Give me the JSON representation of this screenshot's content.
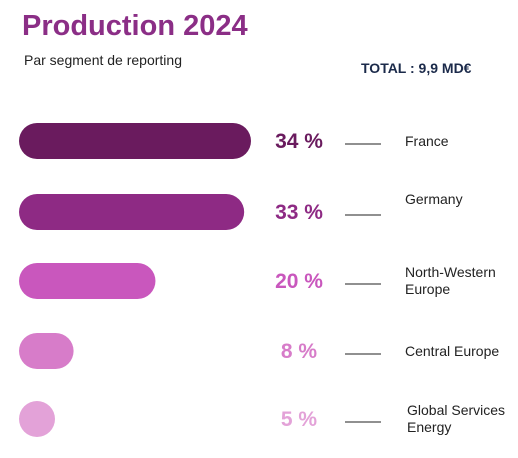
{
  "header": {
    "title": "Production 2024",
    "subtitle": "Par segment de reporting",
    "total": "TOTAL : 9,9 MD€"
  },
  "colors": {
    "title": "#8b2e86",
    "series": [
      "#6a1b5e",
      "#8e2a84",
      "#c957bd",
      "#d77cc9",
      "#e3a2d8"
    ],
    "leader_line": "#222222"
  },
  "chart_data": {
    "type": "bar",
    "orientation": "horizontal",
    "title": "Production 2024",
    "subtitle": "Par segment de reporting",
    "categories": [
      [
        "France"
      ],
      [
        "Germany"
      ],
      [
        "North-Western",
        "Europe"
      ],
      [
        "Central Europe"
      ],
      [
        "Global Services",
        "Energy"
      ]
    ],
    "values": [
      34,
      33,
      20,
      8,
      5
    ],
    "value_labels": [
      "34 %",
      "33 %",
      "20 %",
      "8 %",
      "5 %"
    ],
    "unit": "%",
    "xlim": [
      0,
      34
    ],
    "grid": false,
    "legend": "none"
  }
}
